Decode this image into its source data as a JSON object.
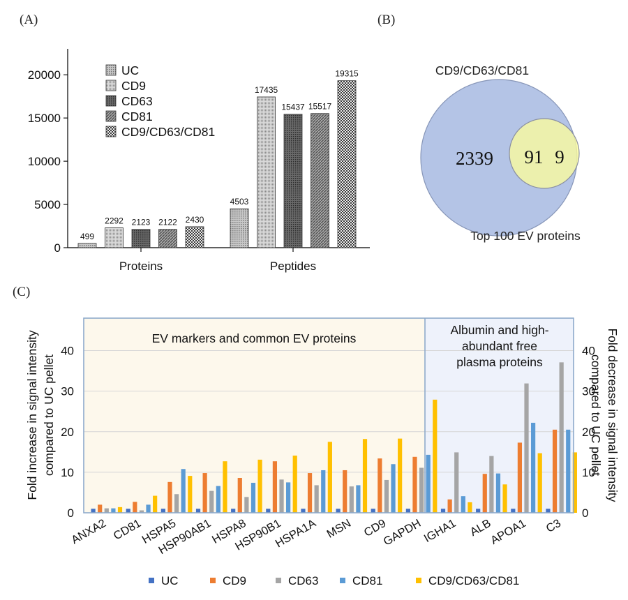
{
  "panel_labels": {
    "a": "(A)",
    "b": "(B)",
    "c": "(C)"
  },
  "colors": {
    "uc": "#4472c4",
    "cd9": "#ed7d31",
    "cd63": "#a5a5a5",
    "cd81": "#5b9bd5",
    "triple": "#ffc000",
    "venn_big": "#b4c4e6",
    "venn_small": "#ffff99",
    "region_left": "#fdf8ec",
    "region_right": "#eef2fb",
    "region_border": "#8eaacb"
  },
  "venn": {
    "top_label": "CD9/CD63/CD81",
    "bottom_label": "Top 100 EV proteins",
    "left_only": "2339",
    "overlap": "91",
    "right_only": "9"
  },
  "chart_data": [
    {
      "type": "bar",
      "panel": "A",
      "categories": [
        "Proteins",
        "Peptides"
      ],
      "series": [
        {
          "name": "UC",
          "values": [
            499,
            4503
          ],
          "pattern": "dots-light"
        },
        {
          "name": "CD9",
          "values": [
            2292,
            17435
          ],
          "pattern": "dots-fine"
        },
        {
          "name": "CD63",
          "values": [
            2123,
            15437
          ],
          "pattern": "dots-dark"
        },
        {
          "name": "CD81",
          "values": [
            2122,
            15517
          ],
          "pattern": "stripes"
        },
        {
          "name": "CD9/CD63/CD81",
          "values": [
            2430,
            19315
          ],
          "pattern": "checker"
        }
      ],
      "data_labels": [
        [
          "499",
          "4503"
        ],
        [
          "2292",
          "17435"
        ],
        [
          "2123",
          "15437"
        ],
        [
          "2122",
          "15517"
        ],
        [
          "2430",
          "19315"
        ]
      ],
      "ylim": [
        0,
        23000
      ],
      "yticks": [
        0,
        5000,
        10000,
        15000,
        20000
      ],
      "ytick_labels": [
        "0",
        "5000",
        "10000",
        "15000",
        "20000"
      ],
      "legend": "top-left",
      "grid": false
    },
    {
      "type": "bar",
      "panel": "C",
      "categories": [
        "ANXA2",
        "CD81",
        "HSPA5",
        "HSP90AB1",
        "HSPA8",
        "HSP90B1",
        "HSPA1A",
        "MSN",
        "CD9",
        "GAPDH",
        "IGHA1",
        "ALB",
        "APOA1",
        "C3"
      ],
      "series": [
        {
          "name": "UC",
          "values": [
            1,
            1,
            1,
            1,
            1,
            1,
            1,
            1,
            1,
            1,
            1,
            1,
            1,
            1
          ]
        },
        {
          "name": "CD9",
          "values": [
            2,
            2.7,
            7.6,
            9.8,
            8.6,
            12.7,
            9.8,
            10.5,
            13.4,
            13.8,
            3.3,
            9.6,
            17.3,
            20.5
          ]
        },
        {
          "name": "CD63",
          "values": [
            1.1,
            0.6,
            4.6,
            5.4,
            3.9,
            8.2,
            6.8,
            6.5,
            8.1,
            11.1,
            14.9,
            14,
            31.9,
            37.1
          ]
        },
        {
          "name": "CD81",
          "values": [
            1.1,
            2,
            10.8,
            6.6,
            7.4,
            7.5,
            10.5,
            6.8,
            12,
            14.3,
            4.1,
            9.7,
            22.2,
            20.5
          ]
        },
        {
          "name": "CD9/CD63/CD81",
          "values": [
            1.4,
            4.2,
            9.1,
            12.7,
            13.1,
            14.1,
            17.5,
            18.2,
            18.3,
            27.9,
            2.6,
            7,
            14.7,
            14.9
          ]
        }
      ],
      "ylim": [
        0,
        48
      ],
      "yticks": [
        0,
        10,
        20,
        30,
        40
      ],
      "ytick_labels": [
        "0",
        "10",
        "20",
        "30",
        "40"
      ],
      "ylabel_left": [
        "Fold increase in signal intensity",
        "compared to UC pellet"
      ],
      "ylabel_right": [
        "Fold decrease in signal intensity",
        "compared to UC pellet"
      ],
      "regions": [
        {
          "label": [
            "EV markers and common EV proteins"
          ],
          "from": 0,
          "to": 9
        },
        {
          "label": [
            "Albumin and high-",
            "abundant free",
            "plasma proteins"
          ],
          "from": 10,
          "to": 13
        }
      ],
      "legend": "bottom",
      "grid": true
    }
  ]
}
